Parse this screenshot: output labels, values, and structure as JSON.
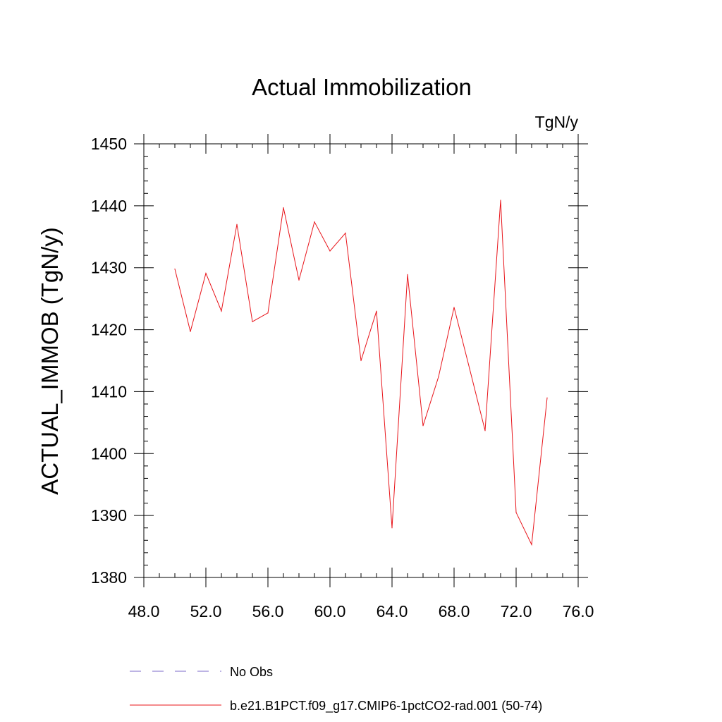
{
  "chart_data": {
    "type": "line",
    "title": "Actual Immobilization",
    "units_label": "TgN/y",
    "xlabel": "",
    "ylabel": "ACTUAL_IMMOB  (TgN/y)",
    "xlim": [
      48,
      76
    ],
    "ylim": [
      1380,
      1450
    ],
    "x_ticks": [
      48,
      52,
      56,
      60,
      64,
      68,
      72,
      76
    ],
    "x_tick_labels": [
      "48.0",
      "52.0",
      "56.0",
      "60.0",
      "64.0",
      "68.0",
      "72.0",
      "76.0"
    ],
    "y_ticks": [
      1380,
      1390,
      1400,
      1410,
      1420,
      1430,
      1440,
      1450
    ],
    "y_tick_labels": [
      "1380",
      "1390",
      "1400",
      "1410",
      "1420",
      "1430",
      "1440",
      "1450"
    ],
    "grid": false,
    "legend_position": "bottom",
    "series": [
      {
        "name": "No Obs",
        "color": "#7b68c8",
        "dash": "dashed",
        "x": [],
        "y": []
      },
      {
        "name": "b.e21.B1PCT.f09_g17.CMIP6-1pctCO2-rad.001 (50-74)",
        "color": "#e8141a",
        "dash": "solid",
        "x": [
          50,
          51,
          52,
          53,
          54,
          55,
          56,
          57,
          58,
          59,
          60,
          61,
          62,
          63,
          64,
          65,
          66,
          67,
          68,
          69,
          70,
          71,
          72,
          73,
          74
        ],
        "y": [
          1429.8,
          1419.7,
          1429.1,
          1423.0,
          1437.0,
          1421.3,
          1422.7,
          1439.7,
          1428.0,
          1437.4,
          1432.7,
          1435.6,
          1415.0,
          1423.0,
          1388.0,
          1428.9,
          1404.5,
          1412.4,
          1423.6,
          1413.7,
          1403.7,
          1440.9,
          1390.5,
          1385.3,
          1409.0
        ]
      }
    ]
  }
}
